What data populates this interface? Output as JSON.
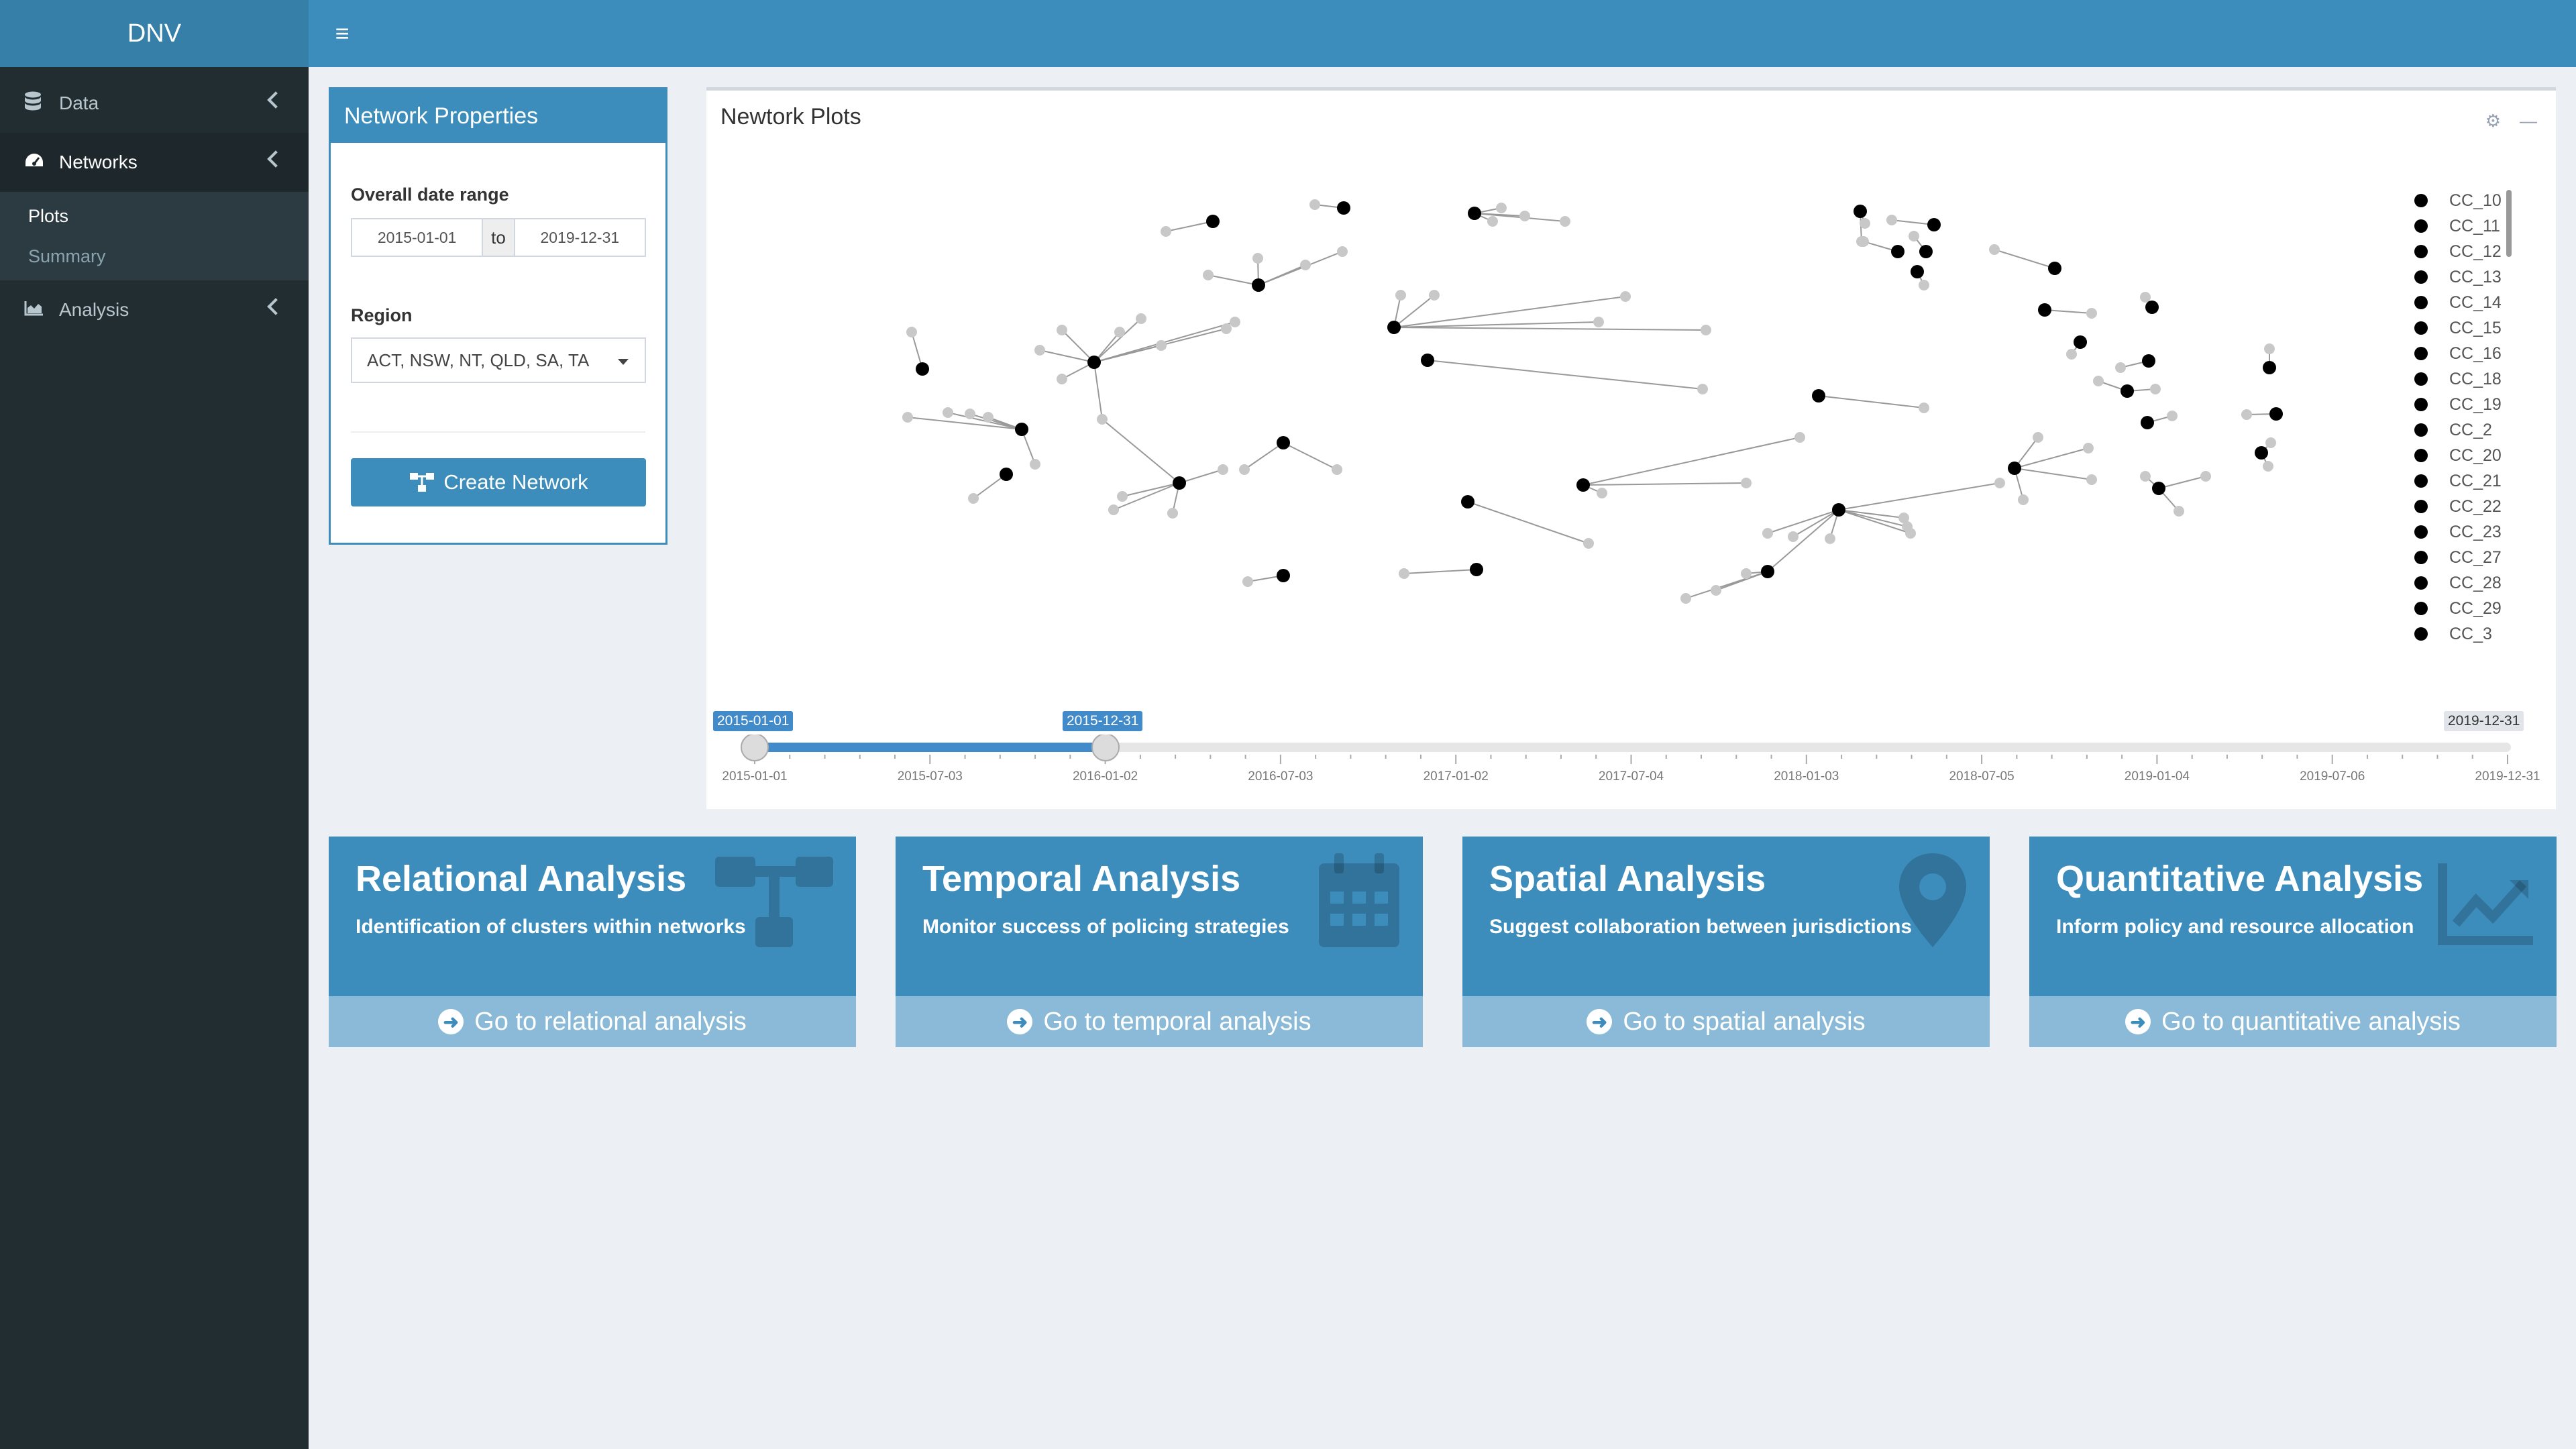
{
  "app": {
    "title": "DNV"
  },
  "sidebar": {
    "items": [
      {
        "label": "Data",
        "icon": "database-icon"
      },
      {
        "label": "Networks",
        "icon": "dashboard-icon",
        "submenu": [
          "Plots",
          "Summary"
        ]
      },
      {
        "label": "Analysis",
        "icon": "area-chart-icon"
      }
    ]
  },
  "network_properties": {
    "title": "Network Properties",
    "date_range_label": "Overall date range",
    "date_start": "2015-01-01",
    "date_separator": "to",
    "date_end": "2019-12-31",
    "region_label": "Region",
    "region_value": "ACT, NSW, NT, QLD, SA, TA",
    "create_button": "Create Network"
  },
  "network_plots": {
    "title": "Newtork Plots",
    "legend": [
      "CC_10",
      "CC_11",
      "CC_12",
      "CC_13",
      "CC_14",
      "CC_15",
      "CC_16",
      "CC_18",
      "CC_19",
      "CC_2",
      "CC_20",
      "CC_21",
      "CC_22",
      "CC_23",
      "CC_27",
      "CC_28",
      "CC_29",
      "CC_3"
    ],
    "slider": {
      "from": "2015-01-01",
      "to": "2015-12-31",
      "max": "2019-12-31",
      "ticks": [
        "2015-01-01",
        "2015-07-03",
        "2016-01-02",
        "2016-07-03",
        "2017-01-02",
        "2017-07-04",
        "2018-01-03",
        "2018-07-05",
        "2019-01-04",
        "2019-07-06",
        "2019-12-31"
      ]
    }
  },
  "cards": [
    {
      "title": "Relational Analysis",
      "subtitle": "Identification of clusters within networks",
      "link": "Go to relational analysis",
      "icon": "sitemap-icon"
    },
    {
      "title": "Temporal Analysis",
      "subtitle": "Monitor success of policing strategies",
      "link": "Go to temporal analysis",
      "icon": "calendar-icon"
    },
    {
      "title": "Spatial Analysis",
      "subtitle": "Suggest collaboration between jurisdictions",
      "link": "Go to spatial analysis",
      "icon": "map-marker-icon"
    },
    {
      "title": "Quantitative Analysis",
      "subtitle": "Inform policy and resource allocation",
      "link": "Go to quantitative analysis",
      "icon": "line-chart-icon"
    }
  ]
}
